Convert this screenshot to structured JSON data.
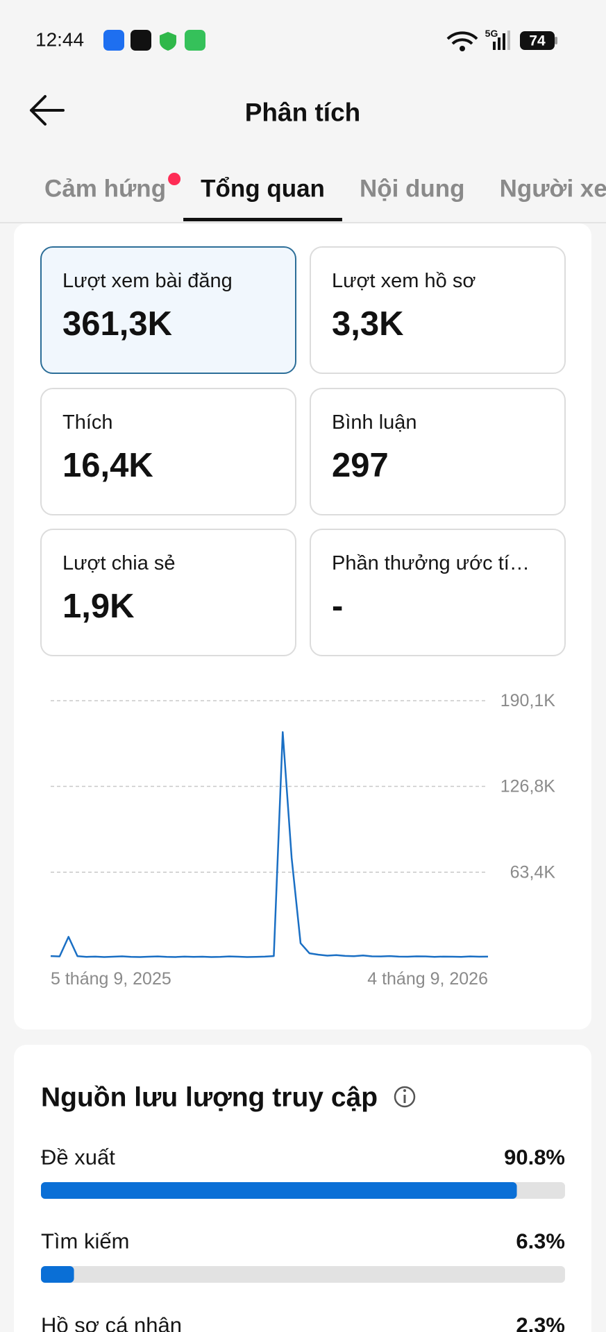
{
  "status_bar": {
    "time": "12:44",
    "network": "5G",
    "battery": "74"
  },
  "header": {
    "title": "Phân tích"
  },
  "tabs": {
    "items": [
      "Cảm hứng",
      "Tổng quan",
      "Nội dung",
      "Người xem"
    ],
    "active": 1
  },
  "metrics": {
    "selected": 0,
    "items": [
      {
        "label": "Lượt xem bài đăng",
        "value": "361,3K"
      },
      {
        "label": "Lượt xem hồ sơ",
        "value": "3,3K"
      },
      {
        "label": "Thích",
        "value": "16,4K"
      },
      {
        "label": "Bình luận",
        "value": "297"
      },
      {
        "label": "Lượt chia sẻ",
        "value": "1,9K"
      },
      {
        "label": "Phần thưởng ước tí…",
        "value": "-"
      }
    ]
  },
  "chart_data": {
    "type": "line",
    "color": "#1a6fc4",
    "categories": [
      "5 tháng 9, 2025",
      null,
      null,
      null,
      null,
      null,
      null,
      null,
      null,
      null,
      null,
      null,
      null,
      null,
      null,
      null,
      null,
      null,
      null,
      null,
      null,
      null,
      null,
      null,
      null,
      null,
      null,
      null,
      null,
      null,
      null,
      null,
      null,
      null,
      null,
      null,
      null,
      null,
      null,
      null,
      null,
      null,
      null,
      null,
      null,
      null,
      null,
      null,
      null,
      "4 tháng 9, 2026"
    ],
    "values": [
      1500,
      1200,
      15700,
      1400,
      900,
      1100,
      800,
      1000,
      1300,
      900,
      800,
      1000,
      1200,
      900,
      800,
      1100,
      900,
      1000,
      800,
      900,
      1200,
      1000,
      800,
      900,
      1100,
      1500,
      166900,
      74000,
      11000,
      3500,
      2500,
      1800,
      2200,
      1600,
      1400,
      1900,
      1300,
      1200,
      1500,
      1100,
      1000,
      1300,
      1200,
      900,
      1100,
      1000,
      900,
      1200,
      1000,
      1100
    ],
    "ylim": [
      0,
      190100
    ],
    "yticks": [
      {
        "value": 63400,
        "label": "63,4K"
      },
      {
        "value": 126800,
        "label": "126,8K"
      },
      {
        "value": 190100,
        "label": "190,1K"
      }
    ],
    "grid": true
  },
  "traffic_sources": {
    "title": "Nguồn lưu lượng truy cập",
    "categories": [
      "Đề xuất",
      "Tìm kiếm",
      "Hồ sơ cá nhân"
    ],
    "values": [
      90.8,
      6.3,
      2.3
    ],
    "value_labels": [
      "90.8%",
      "6.3%",
      "2.3%"
    ],
    "xlim": [
      0,
      100
    ],
    "color": "#0a6fd6",
    "track_color": "#e2e2e2"
  }
}
